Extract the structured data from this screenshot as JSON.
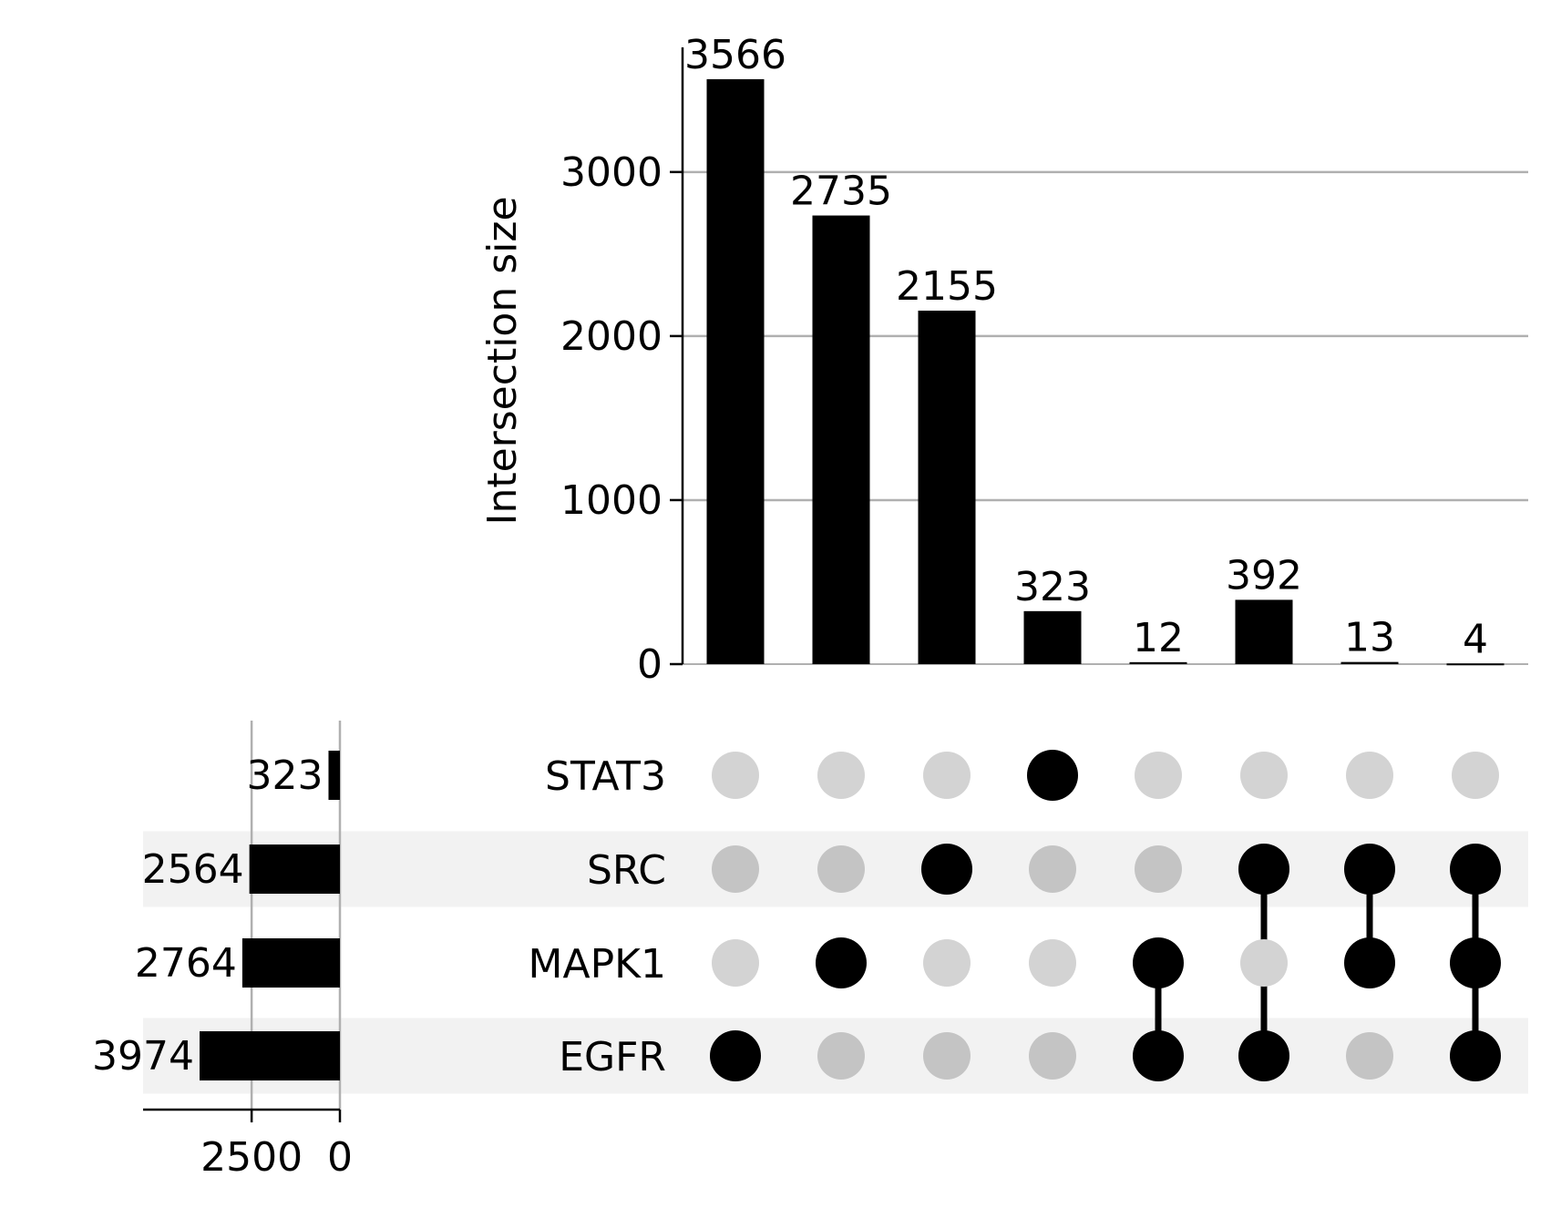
{
  "chart_data": {
    "type": "upset",
    "ylabel": "Intersection size",
    "intersection_axis": {
      "ylim": [
        0,
        3760
      ],
      "ticks": [
        0,
        1000,
        2000,
        3000
      ],
      "grid": true
    },
    "set_size_axis": {
      "xlim": [
        0,
        4000
      ],
      "ticks": [
        0,
        2500
      ],
      "reversed": true,
      "grid": true
    },
    "sets": [
      {
        "name": "STAT3",
        "size": 323
      },
      {
        "name": "SRC",
        "size": 2564
      },
      {
        "name": "MAPK1",
        "size": 2764
      },
      {
        "name": "EGFR",
        "size": 3974
      }
    ],
    "intersections": [
      {
        "members": [
          "EGFR"
        ],
        "value": 3566,
        "label": "3566"
      },
      {
        "members": [
          "MAPK1"
        ],
        "value": 2735,
        "label": "2735"
      },
      {
        "members": [
          "SRC"
        ],
        "value": 2155,
        "label": "2155"
      },
      {
        "members": [
          "STAT3"
        ],
        "value": 323,
        "label": "323"
      },
      {
        "members": [
          "MAPK1",
          "EGFR"
        ],
        "value": 12,
        "label": "12"
      },
      {
        "members": [
          "SRC",
          "EGFR"
        ],
        "value": 392,
        "label": "392"
      },
      {
        "members": [
          "SRC",
          "MAPK1"
        ],
        "value": 13,
        "label": "13"
      },
      {
        "members": [
          "SRC",
          "MAPK1",
          "EGFR"
        ],
        "value": 4,
        "label": "4"
      }
    ],
    "colors": {
      "bar": "#000000",
      "dot_active": "#000000",
      "dot_inactive_light": "#d3d3d3",
      "dot_inactive_shaded": "#c4c4c4",
      "row_shade": "#f2f2f2",
      "grid": "#b0b0b0"
    }
  }
}
